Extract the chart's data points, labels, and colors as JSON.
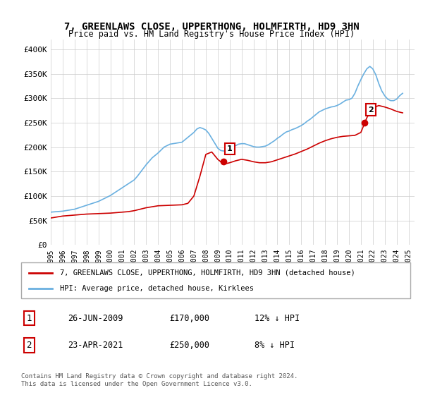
{
  "title": "7, GREENLAWS CLOSE, UPPERTHONG, HOLMFIRTH, HD9 3HN",
  "subtitle": "Price paid vs. HM Land Registry's House Price Index (HPI)",
  "ylabel": "",
  "xlim_start": 1995.0,
  "xlim_end": 2025.5,
  "ylim_bottom": 0,
  "ylim_top": 420000,
  "yticks": [
    0,
    50000,
    100000,
    150000,
    200000,
    250000,
    300000,
    350000,
    400000
  ],
  "ytick_labels": [
    "£0",
    "£50K",
    "£100K",
    "£150K",
    "£200K",
    "£250K",
    "£300K",
    "£350K",
    "£400K"
  ],
  "xticks": [
    1995,
    1996,
    1997,
    1998,
    1999,
    2000,
    2001,
    2002,
    2003,
    2004,
    2005,
    2006,
    2007,
    2008,
    2009,
    2010,
    2011,
    2012,
    2013,
    2014,
    2015,
    2016,
    2017,
    2018,
    2019,
    2020,
    2021,
    2022,
    2023,
    2024,
    2025
  ],
  "hpi_color": "#6ab0e0",
  "price_color": "#cc0000",
  "marker_color_1": "#cc0000",
  "marker_color_2": "#cc0000",
  "background_color": "#ffffff",
  "grid_color": "#cccccc",
  "legend_border_color": "#aaaaaa",
  "annotation_box_color": "#cc0000",
  "sale1_x": 2009.48,
  "sale1_y": 170000,
  "sale1_label": "1",
  "sale2_x": 2021.31,
  "sale2_y": 250000,
  "sale2_label": "2",
  "legend_line1": "7, GREENLAWS CLOSE, UPPERTHONG, HOLMFIRTH, HD9 3HN (detached house)",
  "legend_line2": "HPI: Average price, detached house, Kirklees",
  "table_row1": [
    "1",
    "26-JUN-2009",
    "£170,000",
    "12% ↓ HPI"
  ],
  "table_row2": [
    "2",
    "23-APR-2021",
    "£250,000",
    "8% ↓ HPI"
  ],
  "footer": "Contains HM Land Registry data © Crown copyright and database right 2024.\nThis data is licensed under the Open Government Licence v3.0.",
  "hpi_x": [
    1995.0,
    1995.25,
    1995.5,
    1995.75,
    1996.0,
    1996.25,
    1996.5,
    1996.75,
    1997.0,
    1997.25,
    1997.5,
    1997.75,
    1998.0,
    1998.25,
    1998.5,
    1998.75,
    1999.0,
    1999.25,
    1999.5,
    1999.75,
    2000.0,
    2000.25,
    2000.5,
    2000.75,
    2001.0,
    2001.25,
    2001.5,
    2001.75,
    2002.0,
    2002.25,
    2002.5,
    2002.75,
    2003.0,
    2003.25,
    2003.5,
    2003.75,
    2004.0,
    2004.25,
    2004.5,
    2004.75,
    2005.0,
    2005.25,
    2005.5,
    2005.75,
    2006.0,
    2006.25,
    2006.5,
    2006.75,
    2007.0,
    2007.25,
    2007.5,
    2007.75,
    2008.0,
    2008.25,
    2008.5,
    2008.75,
    2009.0,
    2009.25,
    2009.5,
    2009.75,
    2010.0,
    2010.25,
    2010.5,
    2010.75,
    2011.0,
    2011.25,
    2011.5,
    2011.75,
    2012.0,
    2012.25,
    2012.5,
    2012.75,
    2013.0,
    2013.25,
    2013.5,
    2013.75,
    2014.0,
    2014.25,
    2014.5,
    2014.75,
    2015.0,
    2015.25,
    2015.5,
    2015.75,
    2016.0,
    2016.25,
    2016.5,
    2016.75,
    2017.0,
    2017.25,
    2017.5,
    2017.75,
    2018.0,
    2018.25,
    2018.5,
    2018.75,
    2019.0,
    2019.25,
    2019.5,
    2019.75,
    2020.0,
    2020.25,
    2020.5,
    2020.75,
    2021.0,
    2021.25,
    2021.5,
    2021.75,
    2022.0,
    2022.25,
    2022.5,
    2022.75,
    2023.0,
    2023.25,
    2023.5,
    2023.75,
    2024.0,
    2024.25,
    2024.5
  ],
  "hpi_y": [
    67000,
    67500,
    68000,
    68500,
    69000,
    70000,
    71000,
    72000,
    73000,
    75000,
    77000,
    79000,
    81000,
    83000,
    85000,
    87000,
    89000,
    92000,
    95000,
    98000,
    101000,
    105000,
    109000,
    113000,
    117000,
    121000,
    125000,
    129000,
    133000,
    140000,
    148000,
    156000,
    164000,
    171000,
    178000,
    183000,
    188000,
    194000,
    200000,
    203000,
    206000,
    207000,
    208000,
    209000,
    210000,
    215000,
    220000,
    225000,
    230000,
    237000,
    240000,
    238000,
    235000,
    228000,
    218000,
    208000,
    198000,
    193000,
    192000,
    193000,
    195000,
    199000,
    203000,
    206000,
    207000,
    207000,
    205000,
    203000,
    201000,
    200000,
    200000,
    201000,
    202000,
    205000,
    209000,
    213000,
    218000,
    222000,
    227000,
    231000,
    233000,
    236000,
    238000,
    241000,
    244000,
    248000,
    253000,
    257000,
    262000,
    267000,
    272000,
    275000,
    278000,
    280000,
    282000,
    283000,
    285000,
    288000,
    292000,
    296000,
    297000,
    300000,
    310000,
    325000,
    338000,
    350000,
    360000,
    365000,
    360000,
    348000,
    330000,
    315000,
    305000,
    298000,
    295000,
    295000,
    298000,
    305000,
    310000
  ],
  "price_x": [
    1995.0,
    1995.5,
    1996.0,
    1996.5,
    1997.0,
    1997.5,
    1998.0,
    1998.5,
    1999.0,
    1999.5,
    2000.0,
    2000.5,
    2001.0,
    2001.5,
    2002.0,
    2002.5,
    2003.0,
    2003.5,
    2004.0,
    2004.5,
    2005.0,
    2005.5,
    2006.0,
    2006.5,
    2007.0,
    2007.5,
    2008.0,
    2008.5,
    2009.0,
    2009.5,
    2010.0,
    2010.5,
    2011.0,
    2011.5,
    2012.0,
    2012.5,
    2013.0,
    2013.5,
    2014.0,
    2014.5,
    2015.0,
    2015.5,
    2016.0,
    2016.5,
    2017.0,
    2017.5,
    2018.0,
    2018.5,
    2019.0,
    2019.5,
    2020.0,
    2020.5,
    2021.0,
    2021.5,
    2022.0,
    2022.5,
    2023.0,
    2023.5,
    2024.0,
    2024.5
  ],
  "price_y": [
    55000,
    57000,
    59000,
    60000,
    61000,
    62000,
    63000,
    63500,
    64000,
    64500,
    65000,
    66000,
    67000,
    68000,
    70000,
    73000,
    76000,
    78000,
    80000,
    80500,
    81000,
    81500,
    82000,
    85000,
    100000,
    140000,
    185000,
    190000,
    175000,
    165000,
    168000,
    172000,
    175000,
    173000,
    170000,
    168000,
    168000,
    170000,
    174000,
    178000,
    182000,
    186000,
    191000,
    196000,
    202000,
    208000,
    213000,
    217000,
    220000,
    222000,
    223000,
    224000,
    230000,
    260000,
    280000,
    285000,
    282000,
    278000,
    273000,
    270000
  ]
}
